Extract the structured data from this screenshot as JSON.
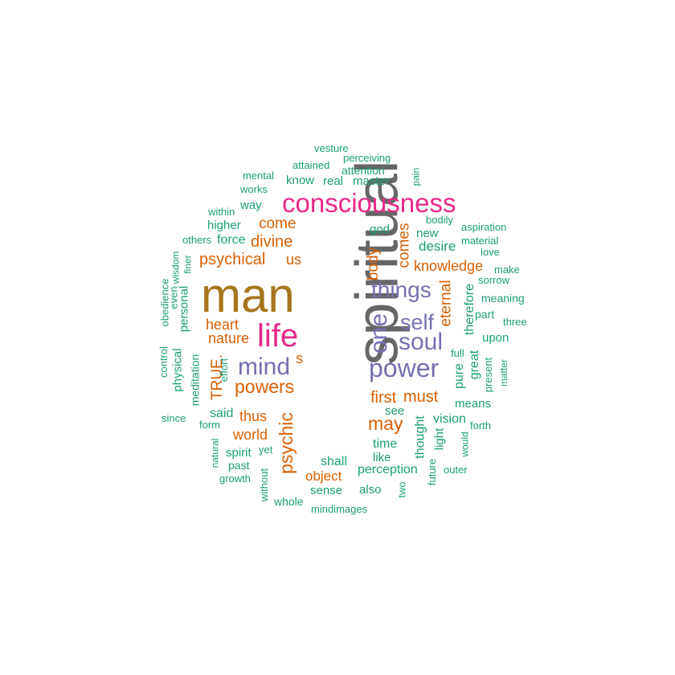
{
  "colors": {
    "teal": "#1b9e77",
    "orange": "#d95f02",
    "purple": "#7570b3",
    "pink": "#e7298a",
    "gold": "#a6761d",
    "gray": "#666666"
  },
  "words": [
    "spiritual",
    "man",
    "consciousness",
    "life",
    "power",
    "mind",
    "things",
    "one",
    "soul",
    "self",
    "powers",
    "psychic",
    "may",
    "must",
    "first",
    "eternal",
    "TRUE.",
    "psychical",
    "divine",
    "come",
    "comes",
    "body",
    "knowledge",
    "heart",
    "nature",
    "thus",
    "world",
    "object",
    "us",
    "s",
    "therefore",
    "desire",
    "vision",
    "thought",
    "time",
    "perception",
    "shall",
    "like",
    "see",
    "means",
    "upon",
    "pure",
    "great",
    "said",
    "spirit",
    "force",
    "higher",
    "way",
    "know",
    "real",
    "master",
    "attention",
    "attained",
    "perceiving",
    "vesture",
    "mental",
    "works",
    "within",
    "others",
    "god",
    "new",
    "bodily",
    "aspiration",
    "material",
    "love",
    "make",
    "sorrow",
    "meaning",
    "part",
    "three",
    "full",
    "present",
    "matter",
    "forth",
    "would",
    "light",
    "outer",
    "future",
    "two",
    "also",
    "sense",
    "mindimages",
    "whole",
    "without",
    "growth",
    "past",
    "natural",
    "yet",
    "form",
    "since",
    "meditation",
    "physical",
    "control",
    "obedience",
    "even",
    "wisdom",
    "personal",
    "finer",
    "effort",
    "pain"
  ]
}
